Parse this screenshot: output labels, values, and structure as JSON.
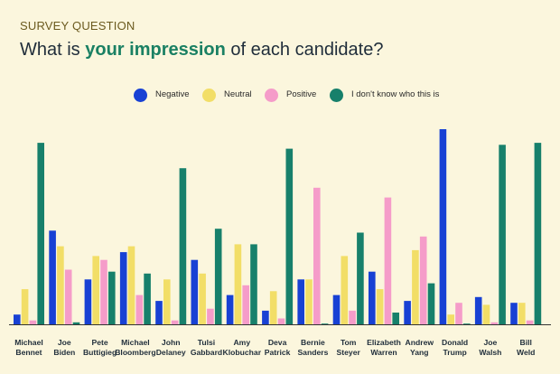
{
  "header": {
    "eyebrow": "SURVEY QUESTION",
    "title_pre": "What is ",
    "title_highlight": "your impression",
    "title_post": " of each candidate?"
  },
  "colors": {
    "background": "#fbf6dd",
    "negative": "#1841d4",
    "neutral": "#f2de67",
    "positive": "#f59cc9",
    "unknown": "#17806b",
    "highlight": "#1a8063",
    "axis": "#333333"
  },
  "chart_data": {
    "type": "bar",
    "title": "What is your impression of each candidate?",
    "xlabel": "",
    "ylabel": "",
    "ylim": [
      0,
      100
    ],
    "grid": false,
    "legend_position": "top",
    "categories": [
      [
        "Michael",
        "Bennet"
      ],
      [
        "Joe",
        "Biden"
      ],
      [
        "Pete",
        "Buttigieg"
      ],
      [
        "Michael",
        "Bloomberg"
      ],
      [
        "John",
        "Delaney"
      ],
      [
        "Tulsi",
        "Gabbard"
      ],
      [
        "Amy",
        "Klobuchar"
      ],
      [
        "Deva",
        "Patrick"
      ],
      [
        "Bernie",
        "Sanders"
      ],
      [
        "Tom",
        "Steyer"
      ],
      [
        "Elizabeth",
        "Warren"
      ],
      [
        "Andrew",
        "Yang"
      ],
      [
        "Donald",
        "Trump"
      ],
      [
        "Joe",
        "Walsh"
      ],
      [
        "Bill",
        "Weld"
      ]
    ],
    "series": [
      {
        "name": "Negative",
        "color": "#1841d4",
        "values": [
          5,
          48,
          23,
          37,
          12,
          33,
          15,
          7,
          23,
          15,
          27,
          12,
          100,
          14,
          11
        ]
      },
      {
        "name": "Neutral",
        "color": "#f2de67",
        "values": [
          18,
          40,
          35,
          40,
          23,
          26,
          41,
          17,
          23,
          35,
          18,
          38,
          5,
          10,
          11
        ]
      },
      {
        "name": "Positive",
        "color": "#f59cc9",
        "values": [
          2,
          28,
          33,
          15,
          2,
          8,
          20,
          3,
          70,
          7,
          65,
          45,
          11,
          1,
          2
        ]
      },
      {
        "name": "I don't know who this is",
        "color": "#17806b",
        "values": [
          93,
          1,
          27,
          26,
          80,
          49,
          41,
          90,
          0,
          47,
          6,
          21,
          0,
          92,
          93
        ]
      }
    ]
  }
}
